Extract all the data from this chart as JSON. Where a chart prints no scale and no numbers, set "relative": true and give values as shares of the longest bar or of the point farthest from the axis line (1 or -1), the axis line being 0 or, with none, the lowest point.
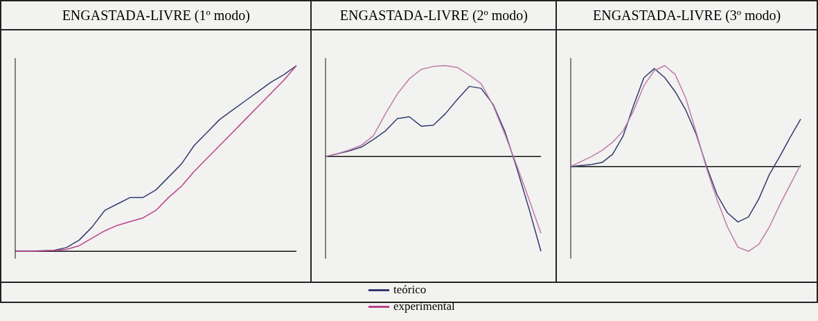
{
  "chart_data": [
    {
      "type": "line",
      "title": "ENGASTADA-LIVRE (1º modo)",
      "relative": true,
      "legend": "bottom",
      "categories": [
        null,
        null,
        null,
        null,
        null,
        null,
        null,
        null,
        null,
        null,
        null,
        null,
        null,
        null,
        null,
        null,
        null,
        null,
        null,
        null,
        null,
        null,
        null
      ],
      "series": [
        {
          "name": "teórico",
          "color": "#2f3a6e",
          "values": [
            0,
            0,
            0.003,
            0.005,
            0.02,
            0.06,
            0.13,
            0.22,
            0.255,
            0.29,
            0.29,
            0.33,
            0.4,
            0.47,
            0.57,
            0.64,
            0.71,
            0.76,
            0.81,
            0.86,
            0.91,
            0.95,
            1
          ]
        },
        {
          "name": "experimental",
          "color": "#b8408a",
          "values": [
            0,
            0,
            0.002,
            0.004,
            0.01,
            0.03,
            0.07,
            0.11,
            0.14,
            0.16,
            0.18,
            0.22,
            0.29,
            0.35,
            0.43,
            0.5,
            0.57,
            0.64,
            0.71,
            0.78,
            0.85,
            0.92,
            1
          ]
        }
      ]
    },
    {
      "type": "line",
      "title": "ENGASTADA-LIVRE (2º modo)",
      "relative": true,
      "categories": [
        null,
        null,
        null,
        null,
        null,
        null,
        null,
        null,
        null,
        null,
        null,
        null,
        null,
        null,
        null,
        null,
        null,
        null,
        null
      ],
      "series": [
        {
          "color": "#2f3a6e",
          "values": [
            0,
            0.03,
            0.06,
            0.1,
            0.18,
            0.27,
            0.4,
            0.42,
            0.32,
            0.33,
            0.45,
            0.6,
            0.74,
            0.72,
            0.55,
            0.26,
            -0.13,
            -0.55,
            -1
          ]
        },
        {
          "color": "#c07aa8",
          "values": [
            0,
            0.03,
            0.07,
            0.12,
            0.22,
            0.45,
            0.66,
            0.82,
            0.92,
            0.95,
            0.96,
            0.94,
            0.86,
            0.77,
            0.54,
            0.23,
            -0.1,
            -0.45,
            -0.81
          ]
        }
      ]
    },
    {
      "type": "line",
      "title": "ENGASTADA-LIVRE (3º modo)",
      "relative": true,
      "categories": [
        null,
        null,
        null,
        null,
        null,
        null,
        null,
        null,
        null,
        null,
        null,
        null,
        null,
        null,
        null,
        null,
        null,
        null,
        null,
        null,
        null,
        null,
        null
      ],
      "series": [
        {
          "color": "#2f3a6e",
          "values": [
            0,
            0.01,
            0.02,
            0.04,
            0.12,
            0.3,
            0.6,
            0.88,
            0.97,
            0.88,
            0.74,
            0.56,
            0.32,
            0,
            -0.28,
            -0.46,
            -0.55,
            -0.5,
            -0.32,
            -0.08,
            0.1,
            0.29,
            0.47
          ]
        },
        {
          "color": "#c07aa8",
          "values": [
            0,
            0.05,
            0.1,
            0.16,
            0.24,
            0.35,
            0.55,
            0.8,
            0.95,
            1,
            0.91,
            0.68,
            0.34,
            -0.02,
            -0.33,
            -0.6,
            -0.8,
            -0.84,
            -0.77,
            -0.6,
            -0.38,
            -0.18,
            0.02
          ]
        }
      ]
    }
  ]
}
